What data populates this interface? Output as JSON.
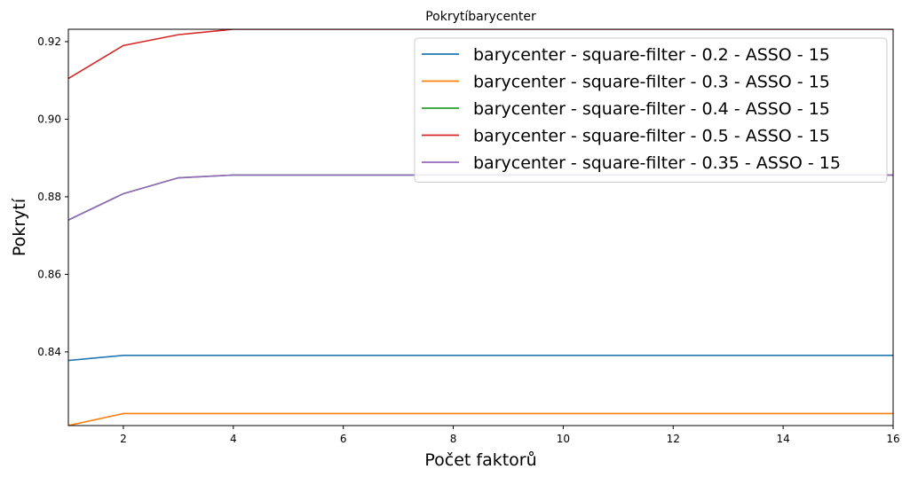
{
  "chart_data": {
    "type": "line",
    "title": "Pokrytíbarycenter",
    "xlabel": "Počet faktorů",
    "ylabel": "Pokrytí",
    "xlim": [
      1,
      16
    ],
    "ylim": [
      0.821,
      0.9232
    ],
    "xticks": [
      2,
      4,
      6,
      8,
      10,
      12,
      14,
      16
    ],
    "yticks": [
      0.84,
      0.86,
      0.88,
      0.9,
      0.92
    ],
    "grid": false,
    "legend_position": "top-right",
    "x": [
      1,
      2,
      3,
      4,
      5,
      6,
      7,
      8,
      9,
      10,
      11,
      12,
      13,
      14,
      15,
      16
    ],
    "series": [
      {
        "name": "barycenter - square-filter - 0.2 - ASSO - 15",
        "color": "#1f77b4",
        "values": [
          0.8378,
          0.8391,
          0.8391,
          0.8391,
          0.8391,
          0.8391,
          0.8391,
          0.8391,
          0.8391,
          0.8391,
          0.8391,
          0.8391,
          0.8391,
          0.8391,
          0.8391,
          0.8391
        ]
      },
      {
        "name": "barycenter - square-filter - 0.3 - ASSO - 15",
        "color": "#ff7f0e",
        "values": [
          0.821,
          0.8241,
          0.8241,
          0.8241,
          0.8241,
          0.8241,
          0.8241,
          0.8241,
          0.8241,
          0.8241,
          0.8241,
          0.8241,
          0.8241,
          0.8241,
          0.8241,
          0.8241
        ]
      },
      {
        "name": "barycenter - square-filter - 0.4 - ASSO - 15",
        "color": "#2ca02c",
        "values": [
          0.874,
          0.8808,
          0.8849,
          0.8856,
          0.8856,
          0.8856,
          0.8856,
          0.8856,
          0.8856,
          0.8856,
          0.8856,
          0.8856,
          0.8856,
          0.8856,
          0.8856,
          0.8856
        ]
      },
      {
        "name": "barycenter - square-filter - 0.5 - ASSO - 15",
        "color": "#d62728",
        "values": [
          0.9105,
          0.919,
          0.9218,
          0.9232,
          0.9232,
          0.9232,
          0.9232,
          0.9232,
          0.9232,
          0.9232,
          0.9232,
          0.9232,
          0.9232,
          0.9232,
          0.9232,
          0.9232
        ]
      },
      {
        "name": "barycenter - square-filter - 0.35 - ASSO - 15",
        "color": "#9467bd",
        "values": [
          0.874,
          0.8808,
          0.8849,
          0.8856,
          0.8856,
          0.8856,
          0.8856,
          0.8856,
          0.8856,
          0.8856,
          0.8856,
          0.8856,
          0.8856,
          0.8856,
          0.8856,
          0.8856
        ]
      }
    ]
  }
}
